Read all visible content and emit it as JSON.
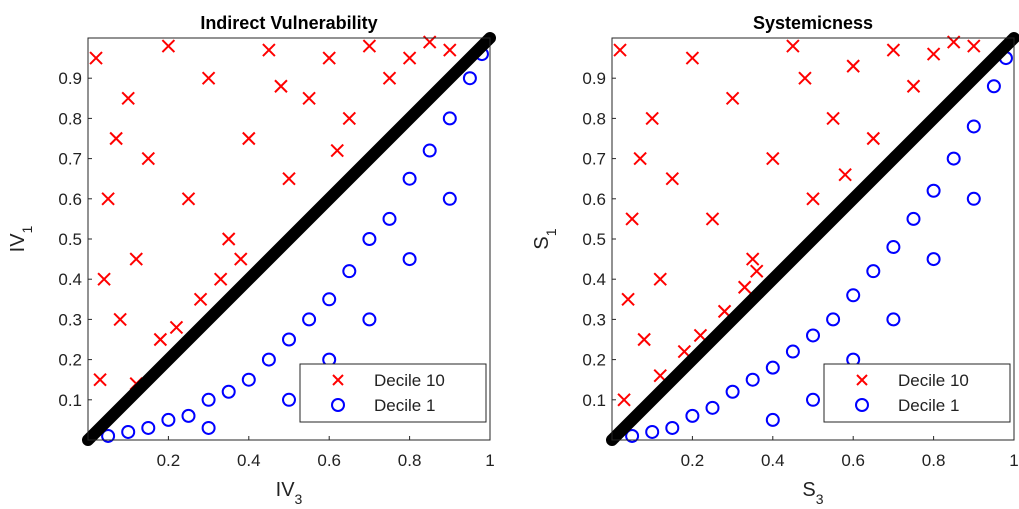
{
  "chart_data": [
    {
      "type": "scatter",
      "title": "Indirect Vulnerability",
      "xlabel": "IV",
      "xlabel_sub": "3",
      "ylabel": "IV",
      "ylabel_sub": "1",
      "xlim": [
        0,
        1
      ],
      "ylim": [
        0,
        1
      ],
      "xticks": [
        0.2,
        0.4,
        0.6,
        0.8,
        1
      ],
      "yticks": [
        0.1,
        0.2,
        0.3,
        0.4,
        0.5,
        0.6,
        0.7,
        0.8,
        0.9
      ],
      "legend": "lower right",
      "series": [
        {
          "name": "Decile 10",
          "color": "#ff0000",
          "marker": "x",
          "x": [
            0.02,
            0.05,
            0.08,
            0.03,
            0.1,
            0.12,
            0.15,
            0.04,
            0.2,
            0.25,
            0.18,
            0.3,
            0.35,
            0.28,
            0.4,
            0.45,
            0.5,
            0.55,
            0.6,
            0.65,
            0.7,
            0.75,
            0.8,
            0.85,
            0.9,
            0.22,
            0.33,
            0.12,
            0.07,
            0.48,
            0.62,
            0.38
          ],
          "values": [
            0.95,
            0.6,
            0.3,
            0.15,
            0.85,
            0.45,
            0.7,
            0.4,
            0.98,
            0.6,
            0.25,
            0.9,
            0.5,
            0.35,
            0.75,
            0.97,
            0.65,
            0.85,
            0.95,
            0.8,
            0.98,
            0.9,
            0.95,
            0.99,
            0.97,
            0.28,
            0.4,
            0.14,
            0.75,
            0.88,
            0.72,
            0.45
          ]
        },
        {
          "name": "Decile 1",
          "color": "#0000ff",
          "marker": "o",
          "x": [
            0.05,
            0.1,
            0.15,
            0.2,
            0.25,
            0.3,
            0.35,
            0.4,
            0.45,
            0.5,
            0.55,
            0.6,
            0.65,
            0.7,
            0.75,
            0.8,
            0.85,
            0.9,
            0.95,
            0.98,
            0.3,
            0.5,
            0.6,
            0.7,
            0.8,
            0.9
          ],
          "values": [
            0.01,
            0.02,
            0.03,
            0.05,
            0.06,
            0.1,
            0.12,
            0.15,
            0.2,
            0.25,
            0.3,
            0.35,
            0.42,
            0.5,
            0.55,
            0.65,
            0.72,
            0.8,
            0.9,
            0.96,
            0.03,
            0.1,
            0.2,
            0.3,
            0.45,
            0.6
          ]
        }
      ],
      "diagonal": {
        "x": [
          0,
          1
        ],
        "y": [
          0,
          1
        ],
        "color": "#000000"
      }
    },
    {
      "type": "scatter",
      "title": "Systemicness",
      "xlabel": "S",
      "xlabel_sub": "3",
      "ylabel": "S",
      "ylabel_sub": "1",
      "xlim": [
        0,
        1
      ],
      "ylim": [
        0,
        1
      ],
      "xticks": [
        0.2,
        0.4,
        0.6,
        0.8,
        1
      ],
      "yticks": [
        0.1,
        0.2,
        0.3,
        0.4,
        0.5,
        0.6,
        0.7,
        0.8,
        0.9
      ],
      "legend": "lower right",
      "series": [
        {
          "name": "Decile 10",
          "color": "#ff0000",
          "marker": "x",
          "x": [
            0.02,
            0.05,
            0.08,
            0.03,
            0.1,
            0.12,
            0.15,
            0.04,
            0.2,
            0.25,
            0.18,
            0.3,
            0.35,
            0.28,
            0.4,
            0.45,
            0.5,
            0.55,
            0.6,
            0.65,
            0.7,
            0.75,
            0.8,
            0.85,
            0.9,
            0.22,
            0.33,
            0.12,
            0.07,
            0.48,
            0.58,
            0.36
          ],
          "values": [
            0.97,
            0.55,
            0.25,
            0.1,
            0.8,
            0.4,
            0.65,
            0.35,
            0.95,
            0.55,
            0.22,
            0.85,
            0.45,
            0.32,
            0.7,
            0.98,
            0.6,
            0.8,
            0.93,
            0.75,
            0.97,
            0.88,
            0.96,
            0.99,
            0.98,
            0.26,
            0.38,
            0.16,
            0.7,
            0.9,
            0.66,
            0.42
          ]
        },
        {
          "name": "Decile 1",
          "color": "#0000ff",
          "marker": "o",
          "x": [
            0.05,
            0.1,
            0.15,
            0.2,
            0.25,
            0.3,
            0.35,
            0.4,
            0.45,
            0.5,
            0.55,
            0.6,
            0.65,
            0.7,
            0.75,
            0.8,
            0.85,
            0.9,
            0.95,
            0.98,
            0.4,
            0.5,
            0.6,
            0.7,
            0.8,
            0.9
          ],
          "values": [
            0.01,
            0.02,
            0.03,
            0.06,
            0.08,
            0.12,
            0.15,
            0.18,
            0.22,
            0.26,
            0.3,
            0.36,
            0.42,
            0.48,
            0.55,
            0.62,
            0.7,
            0.78,
            0.88,
            0.95,
            0.05,
            0.1,
            0.2,
            0.3,
            0.45,
            0.6
          ]
        }
      ],
      "diagonal": {
        "x": [
          0,
          1
        ],
        "y": [
          0,
          1
        ],
        "color": "#000000"
      }
    }
  ]
}
